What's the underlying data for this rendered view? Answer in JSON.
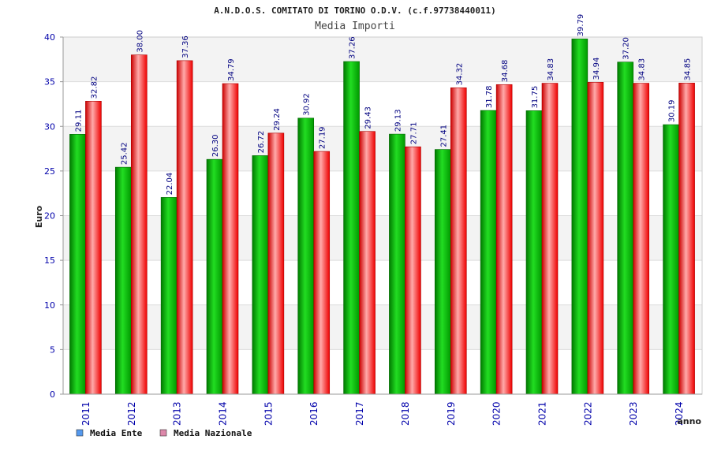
{
  "chart_data": {
    "type": "bar",
    "title": "A.N.D.O.S. COMITATO DI TORINO O.D.V. (c.f.97738440011)",
    "subtitle": "Media Importi",
    "xlabel": "anno",
    "ylabel": "Euro",
    "ylim": [
      0,
      40
    ],
    "yticks": [
      0,
      5,
      10,
      15,
      20,
      25,
      30,
      35,
      40
    ],
    "grid": true,
    "legend_position": "bottom-left",
    "categories": [
      "2011",
      "2012",
      "2013",
      "2014",
      "2015",
      "2016",
      "2017",
      "2018",
      "2019",
      "2020",
      "2021",
      "2022",
      "2023",
      "2024"
    ],
    "series": [
      {
        "name": "Media Ente",
        "color": "#00aa00",
        "legend_color": "#5599ee",
        "values": [
          29.11,
          25.42,
          22.04,
          26.3,
          26.72,
          30.92,
          37.26,
          29.13,
          27.41,
          31.78,
          31.75,
          39.79,
          37.2,
          30.19
        ],
        "labels": [
          "29.11",
          "25.42",
          "22.04",
          "26.30",
          "26.72",
          "30.92",
          "37.26",
          "29.13",
          "27.41",
          "31.78",
          "31.75",
          "39.79",
          "37.20",
          "30.19"
        ]
      },
      {
        "name": "Media Nazionale",
        "color": "#ee0000",
        "legend_color": "#dd88aa",
        "values": [
          32.82,
          38.0,
          37.36,
          34.79,
          29.24,
          27.19,
          29.43,
          27.71,
          34.32,
          34.68,
          34.83,
          34.94,
          34.83,
          34.85
        ],
        "labels": [
          "32.82",
          "38.00",
          "37.36",
          "34.79",
          "29.24",
          "27.19",
          "29.43",
          "27.71",
          "34.32",
          "34.68",
          "34.83",
          "34.94",
          "34.83",
          "34.85"
        ]
      }
    ]
  }
}
